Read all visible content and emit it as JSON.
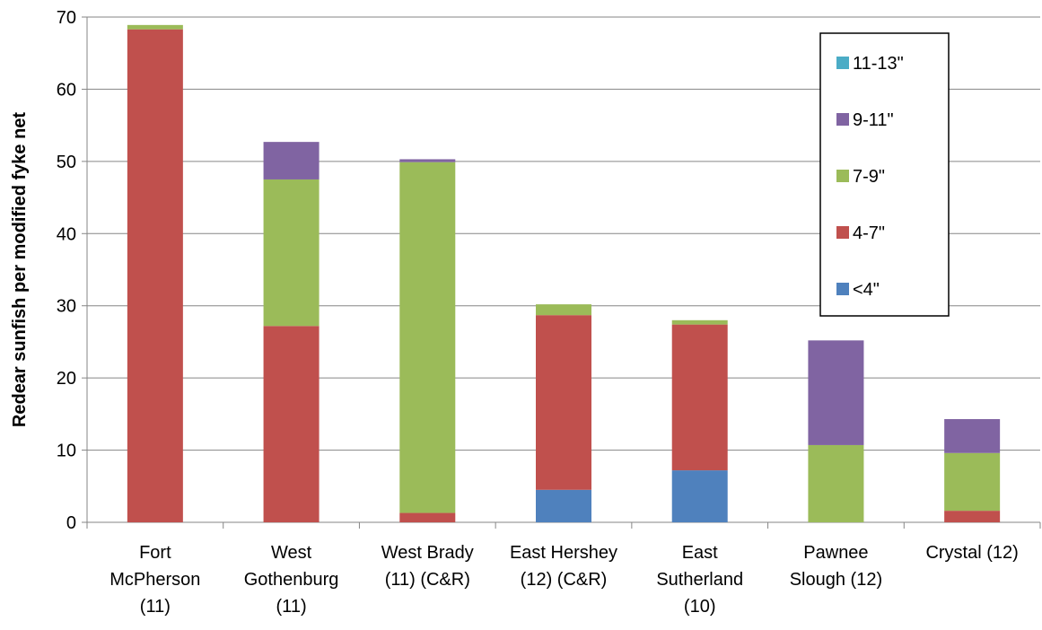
{
  "chart_data": {
    "type": "bar",
    "stacked": true,
    "title": "",
    "ylabel": "Redear sunfish per modified fyke net",
    "xlabel": "",
    "ylim": [
      0,
      70
    ],
    "yticks": [
      0,
      10,
      20,
      30,
      40,
      50,
      60,
      70
    ],
    "grid": true,
    "legend_position": "right",
    "categories": [
      [
        "Fort",
        "McPherson",
        "(11)"
      ],
      [
        "West",
        "Gothenburg",
        "(11)"
      ],
      [
        "West Brady",
        "(11) (C&R)"
      ],
      [
        "East Hershey",
        "(12) (C&R)"
      ],
      [
        "East",
        "Sutherland",
        "(10)"
      ],
      [
        "Pawnee",
        "Slough (12)"
      ],
      [
        "Crystal (12)"
      ]
    ],
    "series": [
      {
        "name": "<4\"",
        "color": "#4f81bd",
        "values": [
          0,
          0,
          0,
          4.5,
          7.2,
          0,
          0
        ]
      },
      {
        "name": "4-7\"",
        "color": "#c0504d",
        "values": [
          68.3,
          27.2,
          1.3,
          24.2,
          20.2,
          0,
          1.6
        ]
      },
      {
        "name": "7-9\"",
        "color": "#9bbb59",
        "values": [
          0.6,
          20.3,
          48.6,
          1.5,
          0.6,
          10.7,
          8.0
        ]
      },
      {
        "name": "9-11\"",
        "color": "#8064a2",
        "values": [
          0,
          5.2,
          0.4,
          0,
          0,
          14.5,
          4.7
        ]
      },
      {
        "name": "11-13\"",
        "color": "#4bacc6",
        "values": [
          0,
          0,
          0,
          0,
          0,
          0,
          0
        ]
      }
    ],
    "legend_order": [
      "11-13\"",
      "9-11\"",
      "7-9\"",
      "4-7\"",
      "<4\""
    ]
  }
}
